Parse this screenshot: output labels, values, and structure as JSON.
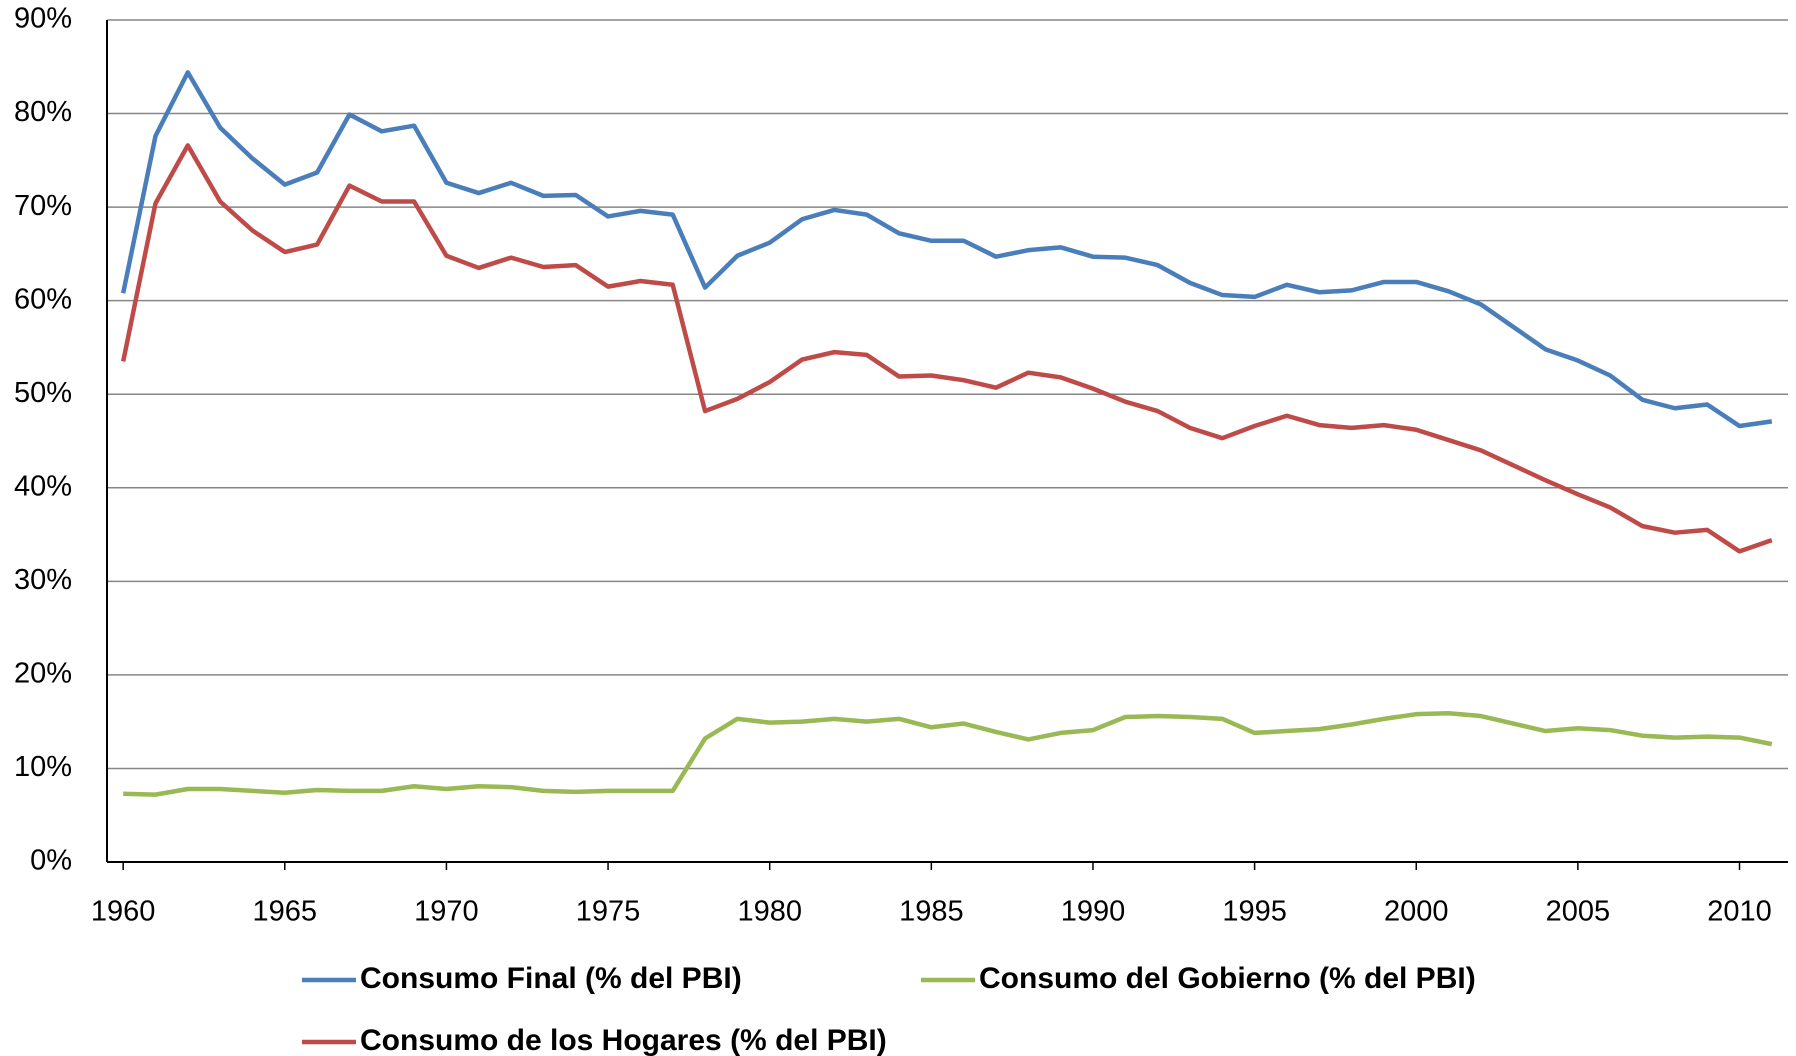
{
  "chart_data": {
    "type": "line",
    "x": [
      1960,
      1961,
      1962,
      1963,
      1964,
      1965,
      1966,
      1967,
      1968,
      1969,
      1970,
      1971,
      1972,
      1973,
      1974,
      1975,
      1976,
      1977,
      1978,
      1979,
      1980,
      1981,
      1982,
      1983,
      1984,
      1985,
      1986,
      1987,
      1988,
      1989,
      1990,
      1991,
      1992,
      1993,
      1994,
      1995,
      1996,
      1997,
      1998,
      1999,
      2000,
      2001,
      2002,
      2003,
      2004,
      2005,
      2006,
      2007,
      2008,
      2009,
      2010,
      2011
    ],
    "series": [
      {
        "name": "Consumo Final (% del PBI)",
        "color": "#4a7ebb",
        "values": [
          60.8,
          77.6,
          84.4,
          78.5,
          75.2,
          72.4,
          73.7,
          79.9,
          78.1,
          78.7,
          72.6,
          71.5,
          72.6,
          71.2,
          71.3,
          69.0,
          69.6,
          69.2,
          61.4,
          64.8,
          66.2,
          68.7,
          69.7,
          69.2,
          67.2,
          66.4,
          66.4,
          64.7,
          65.4,
          65.7,
          64.7,
          64.6,
          63.8,
          61.9,
          60.6,
          60.4,
          61.7,
          60.9,
          61.1,
          62.0,
          62.0,
          61.0,
          59.6,
          57.2,
          54.8,
          53.6,
          52.0,
          49.4,
          48.5,
          48.9,
          46.6,
          47.1
        ]
      },
      {
        "name": "Consumo del Gobierno (% del PBI)",
        "color": "#98b954",
        "values": [
          7.3,
          7.2,
          7.8,
          7.8,
          7.6,
          7.4,
          7.7,
          7.6,
          7.6,
          8.1,
          7.8,
          8.1,
          8.0,
          7.6,
          7.5,
          7.6,
          7.6,
          7.6,
          13.2,
          15.3,
          14.9,
          15.0,
          15.3,
          15.0,
          15.3,
          14.4,
          14.8,
          13.9,
          13.1,
          13.8,
          14.1,
          15.5,
          15.6,
          15.5,
          15.3,
          13.8,
          14.0,
          14.2,
          14.7,
          15.3,
          15.8,
          15.9,
          15.6,
          14.8,
          14.0,
          14.3,
          14.1,
          13.5,
          13.3,
          13.4,
          13.3,
          12.6
        ]
      },
      {
        "name": "Consumo de los Hogares (% del PBI)",
        "color": "#be4b48",
        "values": [
          53.5,
          70.4,
          76.6,
          70.6,
          67.5,
          65.2,
          66.0,
          72.3,
          70.6,
          70.6,
          64.8,
          63.5,
          64.6,
          63.6,
          63.8,
          61.5,
          62.1,
          61.7,
          48.2,
          49.5,
          51.3,
          53.7,
          54.5,
          54.2,
          51.9,
          52.0,
          51.5,
          50.7,
          52.3,
          51.8,
          50.6,
          49.2,
          48.2,
          46.4,
          45.3,
          46.6,
          47.7,
          46.7,
          46.4,
          46.7,
          46.2,
          45.1,
          44.0,
          42.4,
          40.8,
          39.3,
          37.9,
          35.9,
          35.2,
          35.5,
          33.2,
          34.4
        ]
      }
    ],
    "xlim": [
      1959.5,
      2011.5
    ],
    "xticks": [
      1960,
      1965,
      1970,
      1975,
      1980,
      1985,
      1990,
      1995,
      2000,
      2005,
      2010
    ],
    "ylim": [
      0,
      90
    ],
    "yticks": [
      {
        "value": 0,
        "label": "0%"
      },
      {
        "value": 10,
        "label": "10%"
      },
      {
        "value": 20,
        "label": "20%"
      },
      {
        "value": 30,
        "label": "30%"
      },
      {
        "value": 40,
        "label": "40%"
      },
      {
        "value": 50,
        "label": "50%"
      },
      {
        "value": 60,
        "label": "60%"
      },
      {
        "value": 70,
        "label": "70%"
      },
      {
        "value": 80,
        "label": "80%"
      },
      {
        "value": 90,
        "label": "90%"
      }
    ],
    "grid": true
  }
}
